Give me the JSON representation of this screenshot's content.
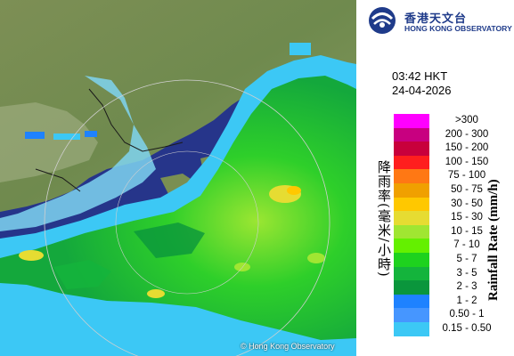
{
  "header": {
    "org_name_cn": "香港天文台",
    "org_name_en": "HONG KONG OBSERVATORY"
  },
  "observation": {
    "time": "03:42 HKT",
    "date": "24-04-2026"
  },
  "legend": {
    "title_en": "Rainfall Rate (mm/h)",
    "title_cn": "降雨率(毫米/小時)",
    "entries": [
      {
        "label": ">300",
        "color": "#ff00ff"
      },
      {
        "label": "200 - 300",
        "color": "#c80080"
      },
      {
        "label": "150 - 200",
        "color": "#c8003c"
      },
      {
        "label": "100 - 150",
        "color": "#ff1e1e"
      },
      {
        "label": "75 - 100",
        "color": "#ff7814"
      },
      {
        "label": "50 - 75",
        "color": "#f0a000"
      },
      {
        "label": "30 - 50",
        "color": "#ffc800"
      },
      {
        "label": "15 - 30",
        "color": "#e6dc32"
      },
      {
        "label": "10 - 15",
        "color": "#a0e632"
      },
      {
        "label": "7 - 10",
        "color": "#64f000"
      },
      {
        "label": "5 - 7",
        "color": "#1ed21e"
      },
      {
        "label": "3 - 5",
        "color": "#14b43c"
      },
      {
        "label": "2 - 3",
        "color": "#0a963c"
      },
      {
        "label": "1 - 2",
        "color": "#1e82ff"
      },
      {
        "label": "0.50 - 1",
        "color": "#4696ff"
      },
      {
        "label": "0.15 - 0.50",
        "color": "#3cc8f5"
      }
    ]
  },
  "map": {
    "copyright": "© Hong Kong Observatory",
    "colors": {
      "land": "#6f8a4e",
      "sea": "#2a3a8c",
      "range_ring": "#d0d0d0"
    }
  }
}
